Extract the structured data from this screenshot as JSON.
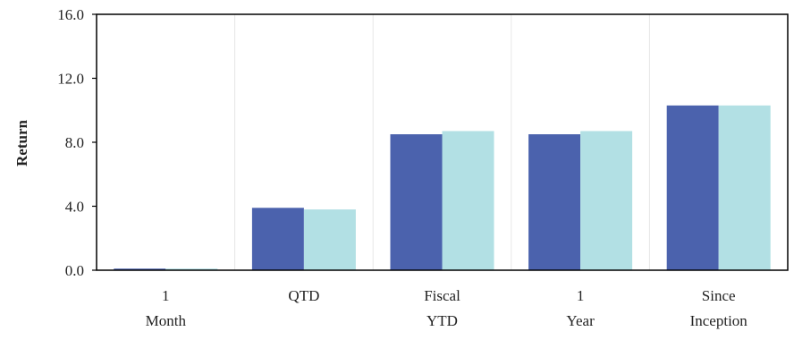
{
  "chart_data": {
    "type": "bar",
    "title": "",
    "xlabel": "",
    "ylabel": "Return",
    "ylim": [
      0,
      16
    ],
    "yticks": [
      "0.0",
      "4.0",
      "8.0",
      "12.0",
      "16.0"
    ],
    "ytick_values": [
      0,
      4,
      8,
      12,
      16
    ],
    "grid": "vertical",
    "legend": "none",
    "categories": [
      [
        "1",
        "Month"
      ],
      [
        "QTD"
      ],
      [
        "Fiscal",
        "YTD"
      ],
      [
        "1",
        "Year"
      ],
      [
        "Since",
        "Inception"
      ]
    ],
    "series": [
      {
        "values": [
          0.1,
          3.9,
          8.5,
          8.5,
          10.3
        ],
        "color": "#4b62ad"
      },
      {
        "values": [
          0.1,
          3.8,
          8.7,
          8.7,
          10.3
        ],
        "color": "#b2e0e4"
      }
    ]
  }
}
